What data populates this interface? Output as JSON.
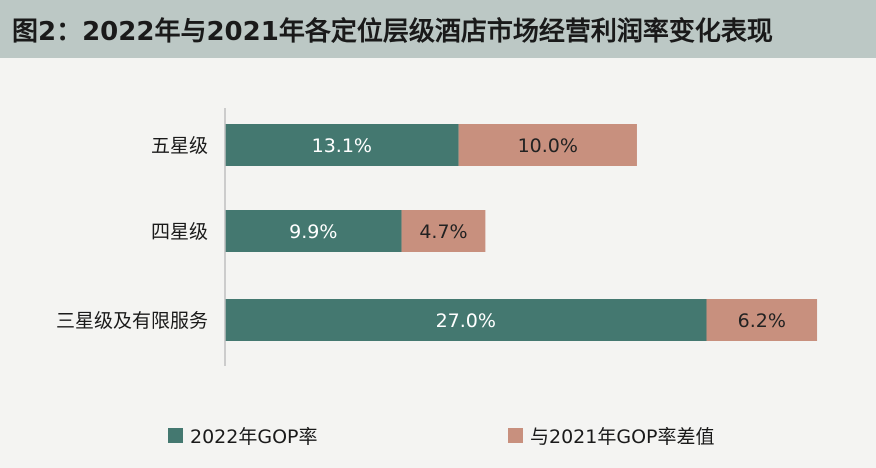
{
  "title": "图2：2022年与2021年各定位层级酒店市场经营利润率变化表现",
  "colors": {
    "series_2022": "#447870",
    "series_diff": "#c8907e",
    "axis": "#bfbfbf",
    "label_light": "#ffffff",
    "label_dark": "#222222"
  },
  "chart_data": {
    "type": "bar",
    "orientation": "horizontal",
    "stacked": true,
    "categories": [
      "五星级",
      "四星级",
      "三星级及有限服务"
    ],
    "series": [
      {
        "name": "2022年GOP率",
        "values": [
          13.1,
          9.9,
          27.0
        ],
        "labels": [
          "13.1%",
          "9.9%",
          "27.0%"
        ]
      },
      {
        "name": "与2021年GOP率差值",
        "values": [
          10.0,
          4.7,
          6.2
        ],
        "labels": [
          "10.0%",
          "4.7%",
          "6.2%"
        ]
      }
    ],
    "xlim": [
      0,
      36
    ],
    "grid": false,
    "legend_position": "bottom"
  }
}
